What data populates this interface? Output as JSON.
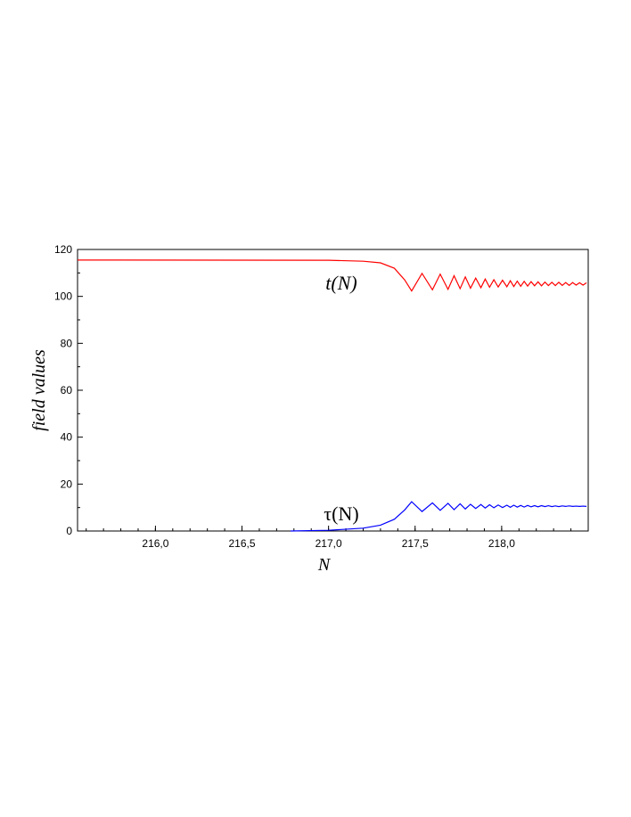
{
  "chart_data": {
    "type": "line",
    "xlabel": "N",
    "ylabel": "field values",
    "xlim": [
      215.55,
      218.5
    ],
    "ylim": [
      0,
      120
    ],
    "xticks": [
      {
        "value": 216.0,
        "label": "216,0"
      },
      {
        "value": 216.5,
        "label": "216,5"
      },
      {
        "value": 217.0,
        "label": "217,0"
      },
      {
        "value": 217.5,
        "label": "217,5"
      },
      {
        "value": 218.0,
        "label": "218,0"
      }
    ],
    "yticks": [
      0,
      20,
      40,
      60,
      80,
      100,
      120
    ],
    "annotations": [
      "t(N)",
      "τ(N)"
    ],
    "series": [
      {
        "name": "t(N)",
        "color": "#ff0000",
        "x": [
          215.55,
          217.0,
          217.2,
          217.3,
          217.38,
          217.44,
          217.48,
          217.54,
          217.6,
          217.645,
          217.69,
          217.725,
          217.76,
          217.79,
          217.82,
          217.85,
          217.88,
          217.905,
          217.93,
          217.955,
          217.98,
          218.005,
          218.03,
          218.05,
          218.07,
          218.09,
          218.11,
          218.13,
          218.15,
          218.17,
          218.19,
          218.21,
          218.23,
          218.25,
          218.27,
          218.29,
          218.31,
          218.33,
          218.35,
          218.37,
          218.39,
          218.41,
          218.43,
          218.45,
          218.47,
          218.49
        ],
        "values": [
          115.5,
          115.4,
          115.0,
          114.3,
          112,
          107,
          102.3,
          109.8,
          102.8,
          109.5,
          103.0,
          108.8,
          103.3,
          108.3,
          103.5,
          107.8,
          103.7,
          107.4,
          103.9,
          107.1,
          104.0,
          106.9,
          104.1,
          106.7,
          104.2,
          106.5,
          104.3,
          106.4,
          104.4,
          106.3,
          104.5,
          106.2,
          104.5,
          106.1,
          104.6,
          106.0,
          104.6,
          106.0,
          104.7,
          105.9,
          104.7,
          105.9,
          104.8,
          105.8,
          104.8,
          105.8
        ]
      },
      {
        "name": "τ(N)",
        "color": "#0000ff",
        "x": [
          216.78,
          217.0,
          217.2,
          217.3,
          217.38,
          217.44,
          217.48,
          217.54,
          217.6,
          217.645,
          217.69,
          217.725,
          217.76,
          217.79,
          217.82,
          217.85,
          217.88,
          217.905,
          217.93,
          217.955,
          217.98,
          218.005,
          218.03,
          218.05,
          218.07,
          218.09,
          218.11,
          218.13,
          218.15,
          218.17,
          218.19,
          218.21,
          218.23,
          218.25,
          218.27,
          218.29,
          218.31,
          218.33,
          218.35,
          218.37,
          218.39,
          218.41,
          218.43,
          218.45,
          218.47,
          218.49
        ],
        "values": [
          0,
          0.3,
          1.2,
          2.5,
          5,
          9,
          12.5,
          8.3,
          12.0,
          8.8,
          11.8,
          9.1,
          11.6,
          9.4,
          11.4,
          9.6,
          11.3,
          9.8,
          11.2,
          9.9,
          11.1,
          10.0,
          11.0,
          10.1,
          11.0,
          10.2,
          10.9,
          10.2,
          10.9,
          10.3,
          10.8,
          10.3,
          10.8,
          10.4,
          10.8,
          10.4,
          10.7,
          10.4,
          10.7,
          10.5,
          10.7,
          10.5,
          10.6,
          10.5,
          10.6,
          10.5
        ]
      }
    ]
  }
}
